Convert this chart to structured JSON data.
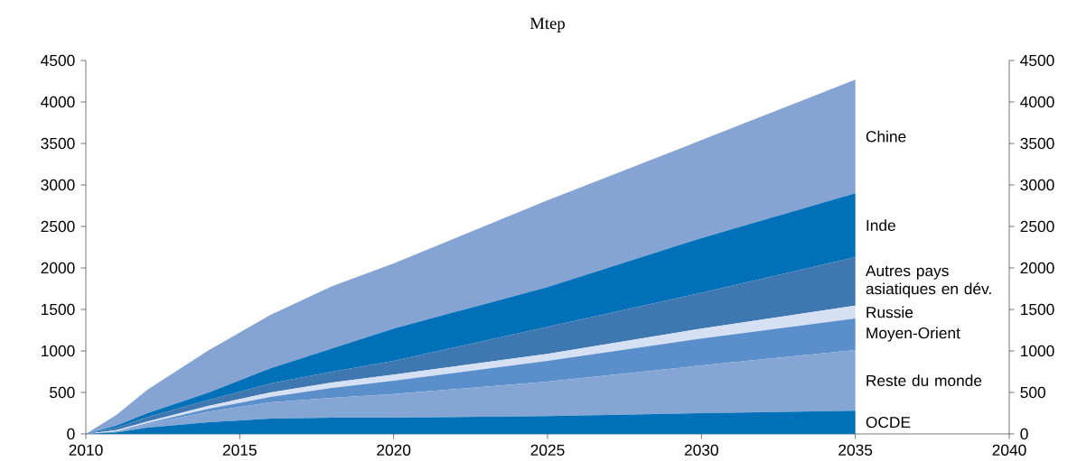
{
  "chart_data": {
    "type": "area",
    "stacked": true,
    "title": "Mtep",
    "legend": false,
    "x": [
      2010,
      2011,
      2012,
      2014,
      2016,
      2018,
      2020,
      2025,
      2030,
      2035
    ],
    "xlim": [
      2010,
      2040
    ],
    "xticks": [
      2010,
      2015,
      2020,
      2025,
      2030,
      2035,
      2040
    ],
    "ylim": [
      0,
      4500
    ],
    "yticks": [
      0,
      500,
      1000,
      1500,
      2000,
      2500,
      3000,
      3500,
      4000,
      4500
    ],
    "y2lim": [
      0,
      4500
    ],
    "y2ticks": [
      0,
      500,
      1000,
      1500,
      2000,
      2500,
      3000,
      3500,
      4000,
      4500
    ],
    "series": [
      {
        "name": "OCDE",
        "color": "#0070b8",
        "values": [
          0,
          20,
          75,
          140,
          185,
          195,
          195,
          215,
          250,
          280
        ]
      },
      {
        "name": "Reste du monde",
        "color": "#85a6d4",
        "values": [
          0,
          0,
          45,
          130,
          195,
          240,
          285,
          415,
          575,
          730
        ]
      },
      {
        "name": "Moyen-Orient",
        "color": "#5b8fcc",
        "values": [
          0,
          10,
          10,
          35,
          65,
          120,
          160,
          250,
          325,
          380
        ]
      },
      {
        "name": "Russie",
        "color": "#d6e0f3",
        "values": [
          0,
          15,
          20,
          35,
          55,
          65,
          75,
          85,
          120,
          155
        ]
      },
      {
        "name": "Autres pays asiatiques en dév.",
        "color": "#3f77b0",
        "values": [
          0,
          30,
          55,
          70,
          110,
          130,
          165,
          325,
          430,
          585
        ]
      },
      {
        "name": "Inde",
        "color": "#0070b8",
        "values": [
          0,
          25,
          45,
          90,
          180,
          280,
          390,
          480,
          660,
          770
        ]
      },
      {
        "name": "Chine",
        "color": "#85a4d3",
        "values": [
          0,
          130,
          283,
          510,
          645,
          750,
          785,
          1045,
          1180,
          1370
        ]
      }
    ]
  }
}
